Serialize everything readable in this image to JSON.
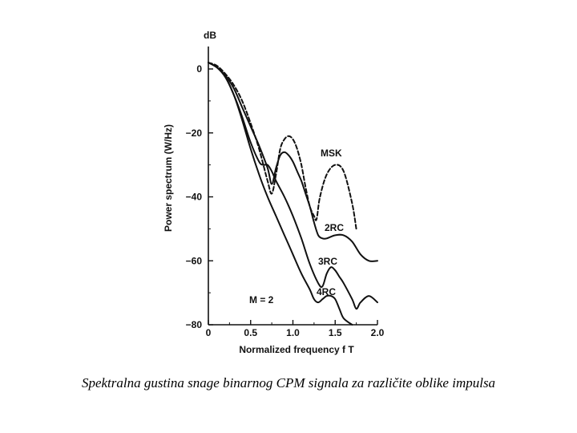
{
  "caption": "Spektralna gustina snage binarnog CPM signala za različite oblike impulsa",
  "chart_data": {
    "type": "line",
    "title": "",
    "xlabel": "Normalized frequency f T",
    "ylabel": "Power spectrum (W/Hz)",
    "yunit": "dB",
    "xlim": [
      0,
      2.0
    ],
    "ylim": [
      -80,
      0
    ],
    "xticks": [
      "0",
      "0.5",
      "1.0",
      "1.5",
      "2.0"
    ],
    "yticks": [
      "0",
      "−20",
      "−40",
      "−60",
      "−80"
    ],
    "grid": false,
    "legend": "none",
    "annotations": {
      "msk": "MSK",
      "rc2": "2RC",
      "rc3": "3RC",
      "rc4": "4RC",
      "m_label": "M = 2"
    },
    "series": [
      {
        "name": "MSK",
        "style": "dashed",
        "x": [
          0,
          0.1,
          0.2,
          0.3,
          0.4,
          0.5,
          0.6,
          0.7,
          0.75,
          0.8,
          0.85,
          0.9,
          0.95,
          1.0,
          1.05,
          1.1,
          1.15,
          1.2,
          1.25,
          1.28,
          1.32,
          1.4,
          1.5,
          1.6,
          1.7,
          1.75
        ],
        "y": [
          2,
          1,
          -1.5,
          -5,
          -10,
          -17,
          -25,
          -35,
          -39,
          -33,
          -25,
          -22,
          -21,
          -22,
          -25,
          -30,
          -37,
          -43,
          -46,
          -47,
          -40,
          -33,
          -30,
          -32,
          -42,
          -50
        ]
      },
      {
        "name": "2RC",
        "style": "solid",
        "x": [
          0,
          0.1,
          0.2,
          0.3,
          0.4,
          0.5,
          0.6,
          0.7,
          0.75,
          0.8,
          0.85,
          0.9,
          0.95,
          1.0,
          1.05,
          1.1,
          1.15,
          1.2,
          1.25,
          1.3,
          1.35,
          1.4,
          1.5,
          1.6,
          1.7,
          1.8,
          1.9,
          2.0
        ],
        "y": [
          2,
          0.5,
          -2,
          -6,
          -12,
          -18,
          -24,
          -31,
          -36,
          -31,
          -27,
          -26,
          -27,
          -29,
          -32,
          -35,
          -39,
          -43,
          -48,
          -52,
          -53,
          -53,
          -52,
          -52,
          -54,
          -58,
          -60,
          -60
        ]
      },
      {
        "name": "3RC",
        "style": "solid",
        "x": [
          0,
          0.1,
          0.2,
          0.3,
          0.4,
          0.5,
          0.6,
          0.65,
          0.7,
          0.75,
          0.8,
          0.9,
          1.0,
          1.1,
          1.2,
          1.3,
          1.35,
          1.4,
          1.45,
          1.5,
          1.55,
          1.6,
          1.7,
          1.75,
          1.8,
          1.9,
          2.0
        ],
        "y": [
          2,
          0.5,
          -2.5,
          -8,
          -15,
          -23,
          -29,
          -30,
          -30,
          -32,
          -35,
          -40,
          -46,
          -53,
          -61,
          -67,
          -68,
          -64,
          -62,
          -63,
          -65,
          -67,
          -72,
          -75,
          -73,
          -71,
          -73
        ]
      },
      {
        "name": "4RC",
        "style": "solid",
        "x": [
          0,
          0.1,
          0.2,
          0.3,
          0.4,
          0.5,
          0.6,
          0.7,
          0.8,
          0.9,
          1.0,
          1.1,
          1.2,
          1.25,
          1.3,
          1.35,
          1.4,
          1.45,
          1.5,
          1.55,
          1.6,
          1.7
        ],
        "y": [
          2,
          0.5,
          -2.5,
          -8,
          -16,
          -25,
          -33,
          -40,
          -46,
          -52,
          -58,
          -64,
          -69,
          -72,
          -73,
          -72,
          -71,
          -71,
          -72,
          -75,
          -78,
          -81
        ]
      }
    ]
  }
}
